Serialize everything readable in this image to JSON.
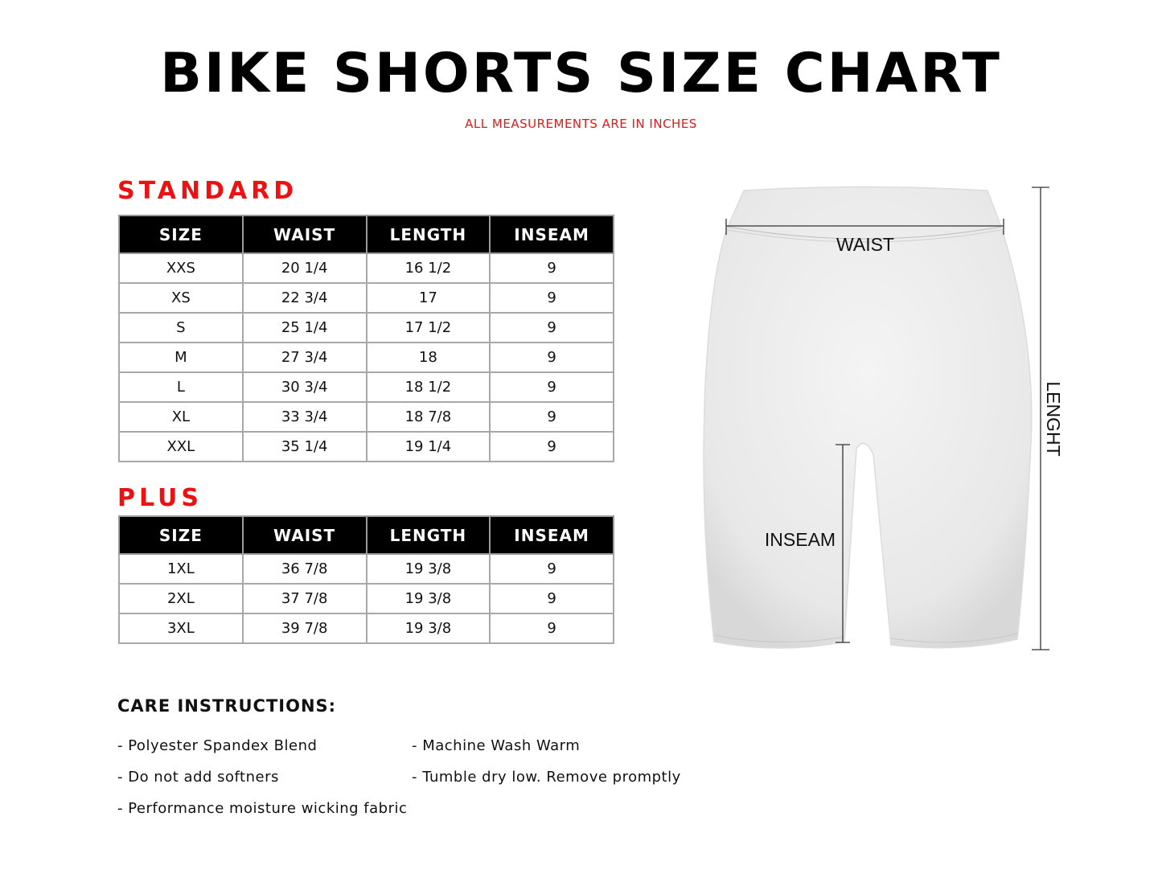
{
  "title": "BIKE SHORTS SIZE CHART",
  "subtitle": "ALL MEASUREMENTS ARE IN INCHES",
  "standard": {
    "heading": "STANDARD",
    "columns": [
      "SIZE",
      "WAIST",
      "LENGTH",
      "INSEAM"
    ],
    "rows": [
      [
        "XXS",
        "20 1/4",
        "16 1/2",
        "9"
      ],
      [
        "XS",
        "22 3/4",
        "17",
        "9"
      ],
      [
        "S",
        "25 1/4",
        "17 1/2",
        "9"
      ],
      [
        "M",
        "27 3/4",
        "18",
        "9"
      ],
      [
        "L",
        "30 3/4",
        "18 1/2",
        "9"
      ],
      [
        "XL",
        "33 3/4",
        "18 7/8",
        "9"
      ],
      [
        "XXL",
        "35 1/4",
        "19 1/4",
        "9"
      ]
    ]
  },
  "plus": {
    "heading": "PLUS",
    "columns": [
      "SIZE",
      "WAIST",
      "LENGTH",
      "INSEAM"
    ],
    "rows": [
      [
        "1XL",
        "36 7/8",
        "19 3/8",
        "9"
      ],
      [
        "2XL",
        "37 7/8",
        "19 3/8",
        "9"
      ],
      [
        "3XL",
        "39 7/8",
        "19 3/8",
        "9"
      ]
    ]
  },
  "diagram": {
    "waist_label": "WAIST",
    "inseam_label": "INSEAM",
    "length_label": "LENGHT"
  },
  "care": {
    "heading": "CARE INSTRUCTIONS:",
    "items": [
      "- Polyester Spandex Blend",
      "- Do not add softners",
      "- Performance moisture wicking fabric",
      "- Machine Wash Warm",
      "- Tumble dry low. Remove promptly"
    ]
  },
  "colors": {
    "accent": "#ee1111",
    "header_bg": "#000000"
  }
}
